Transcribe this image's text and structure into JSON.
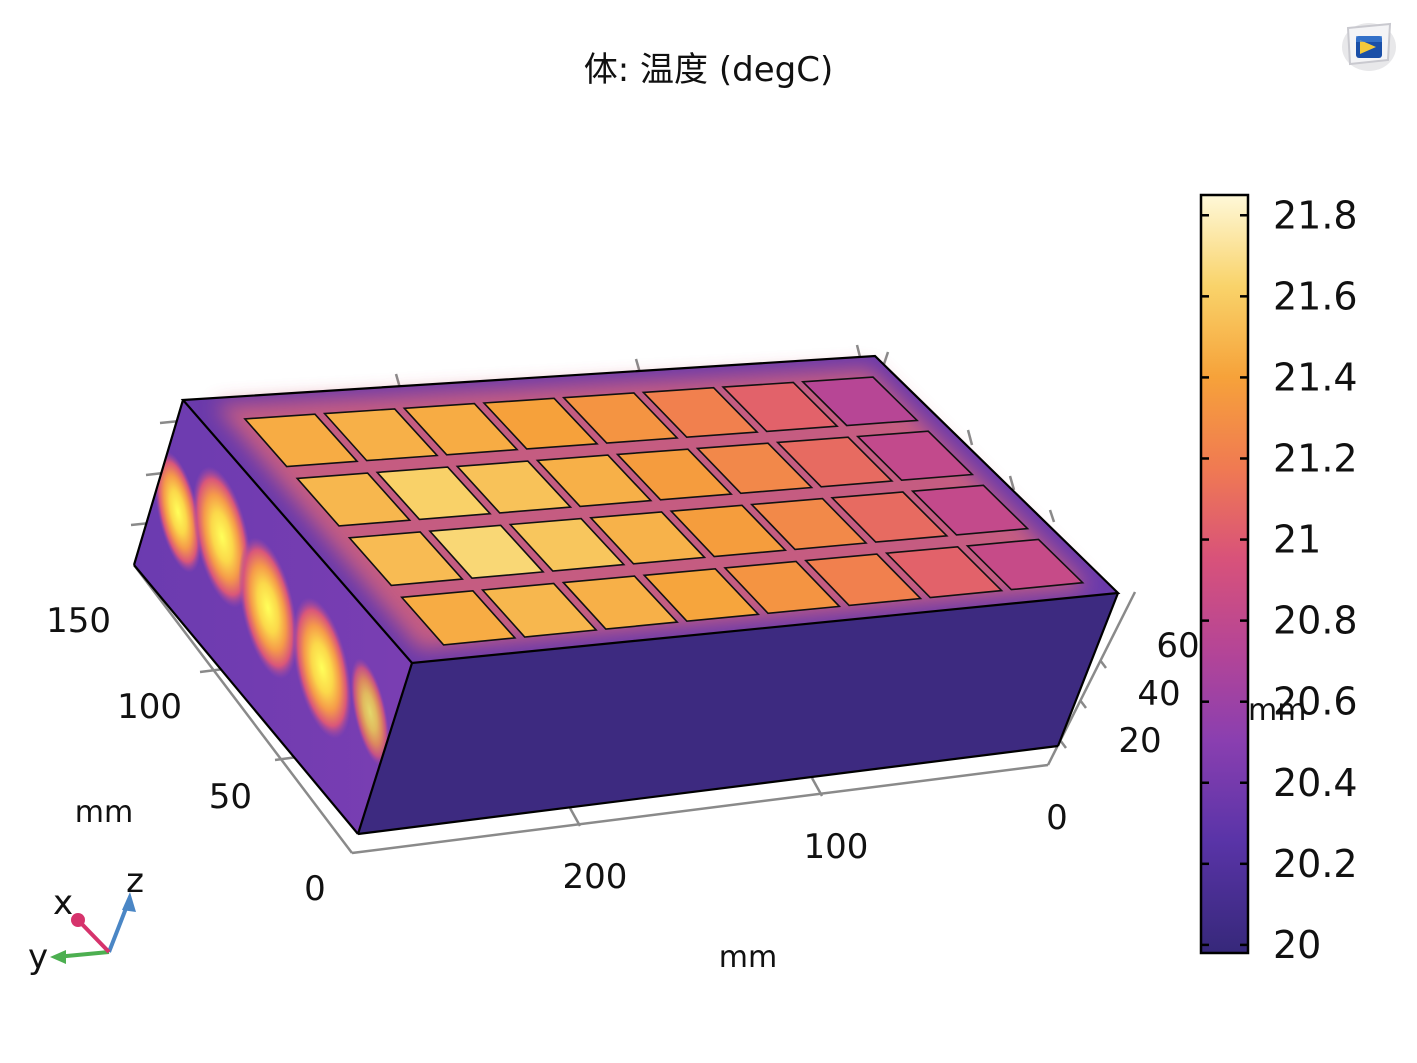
{
  "title": "体: 温度 (degC)",
  "logo_icon": "comsol-logo-icon",
  "chart_data": {
    "type": "heatmap",
    "plot_kind": "3D volume surface plot",
    "quantity": "温度",
    "unit": "degC",
    "colormap": "thermal (dark purple → orange → pale yellow)",
    "color_range": [
      20,
      21.85
    ],
    "colorbar": {
      "position": "right",
      "ticks": [
        20,
        20.2,
        20.4,
        20.6,
        20.8,
        21,
        21.2,
        21.4,
        21.6,
        21.8
      ],
      "tick_labels": [
        "20",
        "20.2",
        "20.4",
        "20.6",
        "20.8",
        "21",
        "21.2",
        "21.4",
        "21.6",
        "21.8"
      ]
    },
    "axes": {
      "x": {
        "label": "mm",
        "ticks": [
          0,
          100,
          200
        ],
        "tick_labels": [
          "0",
          "100",
          "200"
        ]
      },
      "y": {
        "label": "mm",
        "ticks": [
          0,
          50,
          100,
          150
        ],
        "tick_labels": [
          "0",
          "50",
          "100",
          "150"
        ]
      },
      "z": {
        "label": "mm",
        "ticks": [
          0,
          20,
          40,
          60
        ],
        "tick_labels": [
          "0",
          "20",
          "40",
          "60"
        ]
      }
    },
    "axis_triad": {
      "labels": [
        "x",
        "y",
        "z"
      ],
      "colors": [
        "#d6336c",
        "#4caf50",
        "#4a86c5"
      ]
    },
    "cells": {
      "rows": 4,
      "cols": 8,
      "temperatures": [
        [
          21.45,
          21.47,
          21.45,
          21.4,
          21.33,
          21.22,
          21.05,
          20.75
        ],
        [
          21.5,
          21.62,
          21.55,
          21.47,
          21.37,
          21.26,
          21.1,
          20.82
        ],
        [
          21.52,
          21.65,
          21.57,
          21.48,
          21.38,
          21.27,
          21.1,
          20.83
        ],
        [
          21.45,
          21.5,
          21.47,
          21.42,
          21.33,
          21.22,
          21.05,
          20.85
        ]
      ]
    },
    "body_background_temperature": 20.1,
    "colors": {
      "low": "#3b2a7f",
      "mid": "#d6537a",
      "high": "#fdf5cf"
    }
  }
}
